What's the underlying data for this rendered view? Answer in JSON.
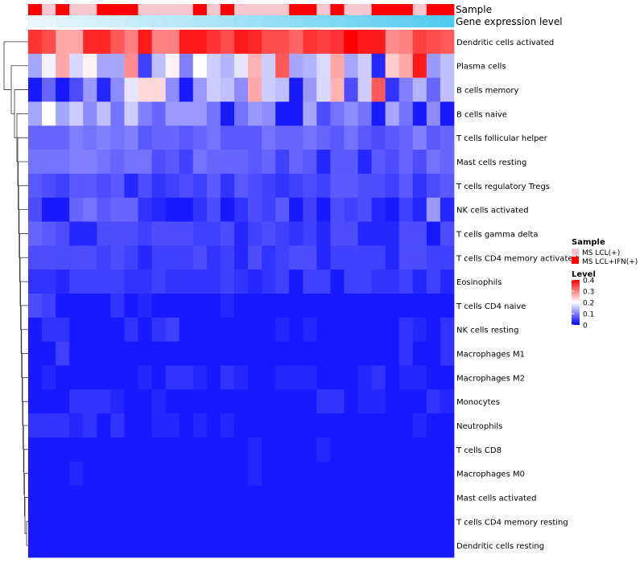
{
  "chart_data": {
    "type": "heatmap",
    "title": "",
    "annotation_labels": {
      "sample": "Sample",
      "gene_expression": "Gene expression level"
    },
    "rows": [
      "Dendritic cells activated",
      "Plasma cells",
      "B cells memory",
      "B cells naive",
      "T cells follicular helper",
      "Mast cells resting",
      "T cells regulatory  Tregs",
      "NK cells activated",
      "T cells gamma delta",
      "T cells CD4 memory activated",
      "Eosinophils",
      "T cells CD4 naive",
      "NK cells resting",
      "Macrophages M1",
      "Macrophages M2",
      "Monocytes",
      "Neutrophils",
      "T cells CD8",
      "Macrophages M0",
      "Mast cells activated",
      "T cells CD4 memory resting",
      "Dendritic cells resting"
    ],
    "sample_groups": [
      "MS LCL+IFN(+)",
      "MS LCL(+)",
      "MS LCL+IFN(+)",
      "MS LCL(+)",
      "MS LCL(+)",
      "MS LCL+IFN(+)",
      "MS LCL+IFN(+)",
      "MS LCL+IFN(+)",
      "MS LCL(+)",
      "MS LCL(+)",
      "MS LCL(+)",
      "MS LCL(+)",
      "MS LCL+IFN(+)",
      "MS LCL(+)",
      "MS LCL+IFN(+)",
      "MS LCL(+)",
      "MS LCL(+)",
      "MS LCL(+)",
      "MS LCL(+)",
      "MS LCL+IFN(+)",
      "MS LCL+IFN(+)",
      "MS LCL(+)",
      "MS LCL+IFN(+)",
      "MS LCL(+)",
      "MS LCL(+)",
      "MS LCL+IFN(+)",
      "MS LCL+IFN(+)",
      "MS LCL+IFN(+)",
      "MS LCL(+)",
      "MS LCL+IFN(+)",
      "MS LCL+IFN(+)"
    ],
    "gene_expression_level": [
      0.02,
      0.05,
      0.08,
      0.11,
      0.14,
      0.17,
      0.2,
      0.23,
      0.27,
      0.3,
      0.33,
      0.36,
      0.39,
      0.42,
      0.45,
      0.48,
      0.52,
      0.55,
      0.58,
      0.61,
      0.64,
      0.67,
      0.7,
      0.73,
      0.76,
      0.8,
      0.83,
      0.86,
      0.9,
      0.94,
      0.98
    ],
    "values": [
      [
        0.36,
        0.34,
        0.27,
        0.27,
        0.37,
        0.37,
        0.33,
        0.3,
        0.38,
        0.3,
        0.3,
        0.38,
        0.38,
        0.36,
        0.34,
        0.38,
        0.37,
        0.34,
        0.34,
        0.32,
        0.36,
        0.35,
        0.36,
        0.4,
        0.38,
        0.38,
        0.29,
        0.3,
        0.35,
        0.34,
        0.33
      ],
      [
        0.13,
        0.19,
        0.27,
        0.17,
        0.21,
        0.13,
        0.13,
        0.29,
        0.05,
        0.15,
        0.21,
        0.1,
        0.2,
        0.16,
        0.14,
        0.18,
        0.26,
        0.16,
        0.33,
        0.13,
        0.14,
        0.17,
        0.27,
        0.13,
        0.16,
        0.03,
        0.24,
        0.27,
        0.38,
        0.12,
        0.15
      ],
      [
        0.02,
        0.08,
        0.02,
        0.06,
        0.12,
        0.03,
        0.11,
        0.18,
        0.23,
        0.23,
        0.11,
        0.02,
        0.12,
        0.16,
        0.15,
        0.11,
        0.27,
        0.16,
        0.15,
        0.02,
        0.12,
        0.17,
        0.26,
        0.06,
        0.16,
        0.33,
        0.04,
        0.1,
        0.14,
        0.08,
        0.15
      ],
      [
        0.13,
        0.2,
        0.13,
        0.16,
        0.11,
        0.15,
        0.09,
        0.16,
        0.1,
        0.08,
        0.12,
        0.12,
        0.12,
        0.09,
        0.02,
        0.09,
        0.12,
        0.11,
        0.02,
        0.02,
        0.13,
        0.06,
        0.09,
        0.11,
        0.09,
        0.02,
        0.13,
        0.09,
        0.02,
        0.11,
        0.02
      ],
      [
        0.08,
        0.08,
        0.08,
        0.1,
        0.09,
        0.1,
        0.09,
        0.1,
        0.07,
        0.08,
        0.08,
        0.07,
        0.08,
        0.09,
        0.07,
        0.07,
        0.07,
        0.09,
        0.08,
        0.08,
        0.09,
        0.08,
        0.07,
        0.09,
        0.07,
        0.06,
        0.07,
        0.08,
        0.1,
        0.07,
        0.08
      ],
      [
        0.09,
        0.09,
        0.09,
        0.1,
        0.1,
        0.09,
        0.08,
        0.09,
        0.09,
        0.06,
        0.07,
        0.05,
        0.09,
        0.08,
        0.08,
        0.08,
        0.07,
        0.08,
        0.05,
        0.08,
        0.07,
        0.03,
        0.07,
        0.07,
        0.03,
        0.07,
        0.06,
        0.08,
        0.06,
        0.09,
        0.08
      ],
      [
        0.07,
        0.06,
        0.05,
        0.07,
        0.07,
        0.06,
        0.07,
        0.03,
        0.06,
        0.04,
        0.05,
        0.06,
        0.05,
        0.07,
        0.04,
        0.07,
        0.06,
        0.05,
        0.04,
        0.05,
        0.06,
        0.05,
        0.07,
        0.07,
        0.06,
        0.06,
        0.05,
        0.07,
        0.04,
        0.06,
        0.07
      ],
      [
        0.06,
        0.02,
        0.02,
        0.08,
        0.09,
        0.07,
        0.08,
        0.08,
        0.04,
        0.03,
        0.02,
        0.02,
        0.04,
        0.06,
        0.02,
        0.04,
        0.06,
        0.05,
        0.07,
        0.02,
        0.05,
        0.02,
        0.06,
        0.05,
        0.06,
        0.03,
        0.02,
        0.05,
        0.03,
        0.12,
        0.03
      ],
      [
        0.08,
        0.07,
        0.06,
        0.03,
        0.03,
        0.06,
        0.06,
        0.06,
        0.05,
        0.06,
        0.06,
        0.06,
        0.05,
        0.05,
        0.06,
        0.03,
        0.05,
        0.06,
        0.05,
        0.04,
        0.05,
        0.03,
        0.06,
        0.06,
        0.03,
        0.03,
        0.03,
        0.06,
        0.06,
        0.02,
        0.06
      ],
      [
        0.06,
        0.06,
        0.06,
        0.06,
        0.06,
        0.05,
        0.06,
        0.05,
        0.03,
        0.05,
        0.05,
        0.05,
        0.06,
        0.04,
        0.05,
        0.03,
        0.06,
        0.04,
        0.05,
        0.06,
        0.06,
        0.03,
        0.05,
        0.05,
        0.05,
        0.05,
        0.03,
        0.06,
        0.06,
        0.05,
        0.05
      ],
      [
        0.04,
        0.04,
        0.03,
        0.05,
        0.05,
        0.05,
        0.05,
        0.04,
        0.04,
        0.05,
        0.04,
        0.04,
        0.04,
        0.04,
        0.05,
        0.04,
        0.03,
        0.04,
        0.05,
        0.02,
        0.05,
        0.05,
        0.02,
        0.05,
        0.05,
        0.04,
        0.04,
        0.05,
        0.03,
        0.05,
        0.03
      ],
      [
        0.06,
        0.05,
        0.02,
        0.02,
        0.02,
        0.02,
        0.04,
        0.02,
        0.03,
        0.02,
        0.02,
        0.02,
        0.02,
        0.02,
        0.03,
        0.02,
        0.02,
        0.02,
        0.02,
        0.02,
        0.02,
        0.02,
        0.02,
        0.02,
        0.02,
        0.02,
        0.02,
        0.02,
        0.02,
        0.02,
        0.02
      ],
      [
        0.02,
        0.04,
        0.04,
        0.02,
        0.02,
        0.02,
        0.02,
        0.04,
        0.02,
        0.04,
        0.05,
        0.02,
        0.02,
        0.02,
        0.02,
        0.02,
        0.02,
        0.02,
        0.03,
        0.02,
        0.03,
        0.02,
        0.02,
        0.02,
        0.02,
        0.02,
        0.02,
        0.04,
        0.03,
        0.02,
        0.04
      ],
      [
        0.02,
        0.02,
        0.05,
        0.02,
        0.02,
        0.02,
        0.02,
        0.02,
        0.02,
        0.02,
        0.02,
        0.02,
        0.02,
        0.02,
        0.02,
        0.02,
        0.02,
        0.02,
        0.02,
        0.02,
        0.02,
        0.02,
        0.02,
        0.02,
        0.02,
        0.02,
        0.02,
        0.04,
        0.02,
        0.02,
        0.04
      ],
      [
        0.02,
        0.03,
        0.02,
        0.02,
        0.02,
        0.02,
        0.02,
        0.02,
        0.03,
        0.02,
        0.04,
        0.04,
        0.03,
        0.02,
        0.04,
        0.03,
        0.02,
        0.02,
        0.03,
        0.03,
        0.03,
        0.02,
        0.02,
        0.02,
        0.03,
        0.04,
        0.02,
        0.03,
        0.03,
        0.02,
        0.02
      ],
      [
        0.02,
        0.02,
        0.02,
        0.04,
        0.04,
        0.04,
        0.03,
        0.02,
        0.02,
        0.03,
        0.02,
        0.02,
        0.02,
        0.02,
        0.02,
        0.02,
        0.02,
        0.02,
        0.02,
        0.02,
        0.02,
        0.04,
        0.04,
        0.02,
        0.03,
        0.03,
        0.02,
        0.02,
        0.02,
        0.04,
        0.03
      ],
      [
        0.04,
        0.04,
        0.04,
        0.03,
        0.04,
        0.02,
        0.04,
        0.02,
        0.02,
        0.03,
        0.03,
        0.02,
        0.03,
        0.02,
        0.03,
        0.02,
        0.02,
        0.02,
        0.02,
        0.02,
        0.02,
        0.02,
        0.02,
        0.02,
        0.02,
        0.02,
        0.02,
        0.02,
        0.03,
        0.02,
        0.02
      ],
      [
        0.02,
        0.02,
        0.02,
        0.02,
        0.02,
        0.02,
        0.02,
        0.02,
        0.02,
        0.02,
        0.02,
        0.02,
        0.02,
        0.02,
        0.02,
        0.02,
        0.03,
        0.02,
        0.02,
        0.02,
        0.02,
        0.03,
        0.02,
        0.02,
        0.02,
        0.02,
        0.02,
        0.02,
        0.02,
        0.02,
        0.02
      ],
      [
        0.02,
        0.02,
        0.02,
        0.03,
        0.02,
        0.02,
        0.02,
        0.02,
        0.02,
        0.02,
        0.02,
        0.02,
        0.02,
        0.02,
        0.02,
        0.02,
        0.03,
        0.02,
        0.02,
        0.02,
        0.02,
        0.02,
        0.02,
        0.02,
        0.02,
        0.02,
        0.02,
        0.02,
        0.02,
        0.02,
        0.02
      ],
      [
        0.02,
        0.02,
        0.02,
        0.02,
        0.02,
        0.02,
        0.02,
        0.02,
        0.02,
        0.02,
        0.02,
        0.02,
        0.02,
        0.02,
        0.02,
        0.02,
        0.02,
        0.02,
        0.02,
        0.02,
        0.02,
        0.02,
        0.02,
        0.02,
        0.02,
        0.02,
        0.02,
        0.02,
        0.02,
        0.02,
        0.02
      ],
      [
        0.02,
        0.02,
        0.02,
        0.02,
        0.02,
        0.02,
        0.02,
        0.02,
        0.02,
        0.02,
        0.02,
        0.02,
        0.02,
        0.02,
        0.02,
        0.02,
        0.02,
        0.02,
        0.02,
        0.02,
        0.02,
        0.02,
        0.02,
        0.02,
        0.02,
        0.02,
        0.02,
        0.02,
        0.02,
        0.02,
        0.02
      ],
      [
        0.02,
        0.02,
        0.02,
        0.02,
        0.02,
        0.02,
        0.02,
        0.02,
        0.02,
        0.02,
        0.02,
        0.02,
        0.02,
        0.02,
        0.02,
        0.02,
        0.02,
        0.02,
        0.02,
        0.02,
        0.02,
        0.02,
        0.02,
        0.02,
        0.02,
        0.02,
        0.02,
        0.02,
        0.02,
        0.02,
        0.02
      ]
    ],
    "legend": {
      "sample_title": "Sample",
      "sample_entries": [
        {
          "label": "MS LCL(+)",
          "color": "#f7c6cf"
        },
        {
          "label": "MS LCL+IFN(+)",
          "color": "#ff0000"
        }
      ],
      "level_title": "Level",
      "level_ticks": [
        "0.4",
        "0.3",
        "0.2",
        "0.1",
        "0"
      ],
      "level_range": [
        0,
        0.4
      ]
    },
    "colors": {
      "low": "#0000ff",
      "mid": "#ffffff",
      "high": "#ff0000",
      "expression_low": "#eef7fb",
      "expression_high": "#4ccaf0"
    }
  }
}
